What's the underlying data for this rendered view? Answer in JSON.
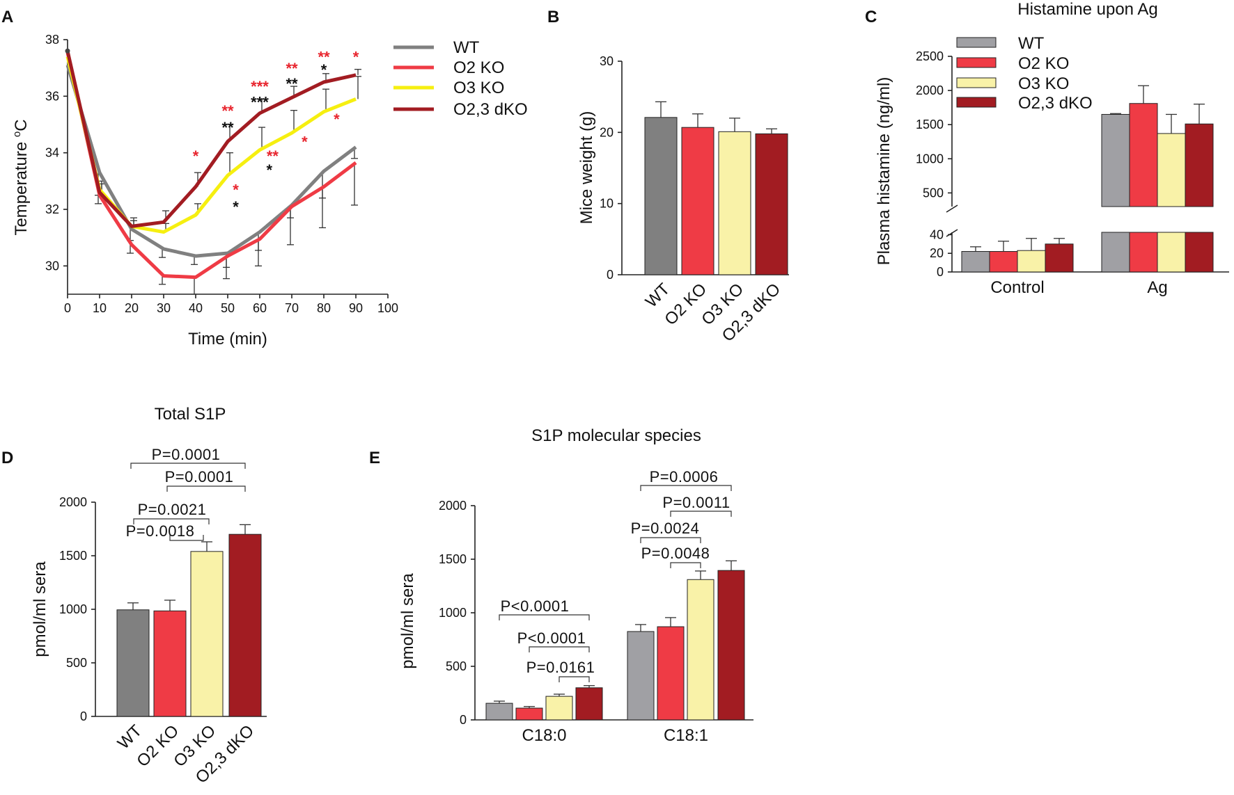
{
  "colors": {
    "WT": "#808080",
    "WT_light": "#a0a0a4",
    "O2 KO": "#ef3b45",
    "O3 KO": "#f6ef10",
    "O3 KO_bar": "#f9f2a8",
    "O2,3 dKO": "#a21c22",
    "star_red": "#e8252e",
    "star_black": "#111111"
  },
  "panel_letters": [
    "A",
    "B",
    "C",
    "D",
    "E"
  ],
  "chart_data": [
    {
      "id": "A",
      "type": "line",
      "title": "",
      "xlabel": "Time (min)",
      "ylabel": "Temperature °C",
      "ylabel_main": "Temperature ",
      "ylabel_sup": "o",
      "ylabel_unit": "C",
      "xlim": [
        0,
        100
      ],
      "ylim": [
        29,
        38
      ],
      "xticks": [
        0,
        10,
        20,
        30,
        40,
        50,
        60,
        70,
        80,
        90,
        100
      ],
      "yticks": [
        30,
        32,
        34,
        36,
        38
      ],
      "x": [
        0,
        10,
        20,
        30,
        40,
        50,
        60,
        70,
        80,
        90
      ],
      "series": [
        {
          "name": "WT",
          "color_key": "WT",
          "values": [
            37.1,
            33.3,
            31.3,
            30.6,
            30.35,
            30.45,
            31.2,
            32.15,
            33.35,
            34.2
          ],
          "err": [
            0,
            0.8,
            0.4,
            0.3,
            0.3,
            0.9,
            1.2,
            1.4,
            2.0,
            0.4
          ]
        },
        {
          "name": "O2 KO",
          "color_key": "O2 KO",
          "values": [
            37.55,
            32.5,
            30.75,
            29.65,
            29.6,
            30.35,
            30.95,
            32.1,
            32.8,
            33.65
          ],
          "err": [
            0,
            0.3,
            0.3,
            0.3,
            0.6,
            0.4,
            0.4,
            0.4,
            0.4,
            1.5
          ]
        },
        {
          "name": "O3 KO",
          "color_key": "O3 KO",
          "values": [
            37.4,
            32.7,
            31.4,
            31.2,
            31.8,
            33.2,
            34.1,
            34.7,
            35.45,
            35.9
          ],
          "err": [
            0,
            0.3,
            0.3,
            0.3,
            0.4,
            0.8,
            0.8,
            0.8,
            0.8,
            0.8
          ]
        },
        {
          "name": "O2,3 dKO",
          "color_key": "O2,3 dKO",
          "values": [
            37.6,
            32.6,
            31.4,
            31.55,
            32.8,
            34.4,
            35.4,
            35.95,
            36.5,
            36.75
          ],
          "err": [
            0,
            0.3,
            0.2,
            0.4,
            0.5,
            0.6,
            0.5,
            0.4,
            0.3,
            0.2
          ]
        }
      ],
      "significance": [
        {
          "x": 40,
          "y": 33.7,
          "text": "*",
          "color": "red"
        },
        {
          "x": 50,
          "y": 35.3,
          "text": "**",
          "color": "red"
        },
        {
          "x": 50,
          "y": 34.7,
          "text": "**",
          "color": "black"
        },
        {
          "x": 60,
          "y": 36.15,
          "text": "***",
          "color": "red"
        },
        {
          "x": 60,
          "y": 35.6,
          "text": "***",
          "color": "black"
        },
        {
          "x": 70,
          "y": 36.8,
          "text": "**",
          "color": "red"
        },
        {
          "x": 70,
          "y": 36.25,
          "text": "**",
          "color": "black"
        },
        {
          "x": 80,
          "y": 37.2,
          "text": "**",
          "color": "red"
        },
        {
          "x": 80,
          "y": 36.75,
          "text": "*",
          "color": "black"
        },
        {
          "x": 90,
          "y": 37.2,
          "text": "*",
          "color": "red"
        },
        {
          "x": 52.5,
          "y": 32.5,
          "text": "*",
          "color": "red"
        },
        {
          "x": 52.5,
          "y": 31.9,
          "text": "*",
          "color": "black"
        },
        {
          "x": 64,
          "y": 33.7,
          "text": "**",
          "color": "red"
        },
        {
          "x": 63,
          "y": 33.2,
          "text": "*",
          "color": "black"
        },
        {
          "x": 74,
          "y": 34.2,
          "text": "*",
          "color": "red"
        },
        {
          "x": 84,
          "y": 35.0,
          "text": "*",
          "color": "red"
        }
      ],
      "legend": [
        "WT",
        "O2 KO",
        "O3 KO",
        "O2,3 dKO"
      ]
    },
    {
      "id": "B",
      "type": "bar",
      "title": "",
      "xlabel": "",
      "ylabel": "Mice weight (g)",
      "ylim": [
        0,
        30
      ],
      "yticks": [
        0,
        10,
        20,
        30
      ],
      "categories": [
        "WT",
        "O2 KO",
        "O3 KO",
        "O2,3 dKO"
      ],
      "values": [
        22.1,
        20.7,
        20.1,
        19.8
      ],
      "err": [
        2.2,
        1.9,
        1.9,
        0.7
      ]
    },
    {
      "id": "C",
      "type": "bar",
      "title": "Histamine upon Ag",
      "xlabel": "",
      "ylabel": "Plasma histamine (ng/ml)",
      "groups": [
        "Control",
        "Ag"
      ],
      "yticks_lower": [
        0,
        20,
        40
      ],
      "yticks_upper": [
        500,
        1000,
        1500,
        2000,
        2500
      ],
      "ylim_lower": [
        0,
        50
      ],
      "ylim_upper": [
        300,
        2500
      ],
      "series": [
        {
          "name": "WT",
          "values": [
            22,
            1650
          ],
          "err": [
            5,
            12
          ]
        },
        {
          "name": "O2 KO",
          "values": [
            22,
            1810
          ],
          "err": [
            11,
            260
          ]
        },
        {
          "name": "O3 KO",
          "values": [
            23,
            1370
          ],
          "err": [
            13,
            280
          ]
        },
        {
          "name": "O2,3 dKO",
          "values": [
            30,
            1510
          ],
          "err": [
            6,
            290
          ]
        }
      ],
      "legend": [
        "WT",
        "O2 KO",
        "O3 KO",
        "O2,3 dKO"
      ]
    },
    {
      "id": "D",
      "type": "bar",
      "title": "Total S1P",
      "xlabel": "",
      "ylabel": "pmol/ml sera",
      "ylim": [
        0,
        2000
      ],
      "yticks": [
        0,
        500,
        1000,
        1500,
        2000
      ],
      "categories": [
        "WT",
        "O2 KO",
        "O3 KO",
        "O2,3 dKO"
      ],
      "values": [
        995,
        985,
        1540,
        1700
      ],
      "err": [
        65,
        100,
        90,
        90
      ],
      "comparisons": [
        {
          "from": 0,
          "to": 3,
          "label": "P=0.0001"
        },
        {
          "from": 1,
          "to": 3,
          "label": "P=0.0001"
        },
        {
          "from": 0,
          "to": 2,
          "label": "P=0.0021"
        },
        {
          "from": 1,
          "to": 2,
          "label": "P=0.0018"
        }
      ]
    },
    {
      "id": "E",
      "type": "bar",
      "title": "S1P molecular species",
      "xlabel": "",
      "ylabel": "pmol/ml sera",
      "ylim": [
        0,
        2000
      ],
      "yticks": [
        0,
        500,
        1000,
        1500,
        2000
      ],
      "groups": [
        "C18:0",
        "C18:1"
      ],
      "series": [
        {
          "name": "WT",
          "values": [
            155,
            825
          ],
          "err": [
            20,
            65
          ]
        },
        {
          "name": "O2 KO",
          "values": [
            110,
            870
          ],
          "err": [
            15,
            85
          ]
        },
        {
          "name": "O3 KO",
          "values": [
            220,
            1310
          ],
          "err": [
            20,
            80
          ]
        },
        {
          "name": "O2,3 dKO",
          "values": [
            300,
            1395
          ],
          "err": [
            20,
            90
          ]
        }
      ],
      "comparisons": [
        {
          "group": 0,
          "from": 0,
          "to": 3,
          "label": "P<0.0001"
        },
        {
          "group": 0,
          "from": 1,
          "to": 3,
          "label": "P<0.0001"
        },
        {
          "group": 0,
          "from": 2,
          "to": 3,
          "label": "P=0.0161"
        },
        {
          "group": 1,
          "from": 0,
          "to": 3,
          "label": "P=0.0006"
        },
        {
          "group": 1,
          "from": 1,
          "to": 3,
          "label": "P=0.0011"
        },
        {
          "group": 1,
          "from": 0,
          "to": 2,
          "label": "P=0.0024"
        },
        {
          "group": 1,
          "from": 1,
          "to": 2,
          "label": "P=0.0048"
        }
      ]
    }
  ]
}
